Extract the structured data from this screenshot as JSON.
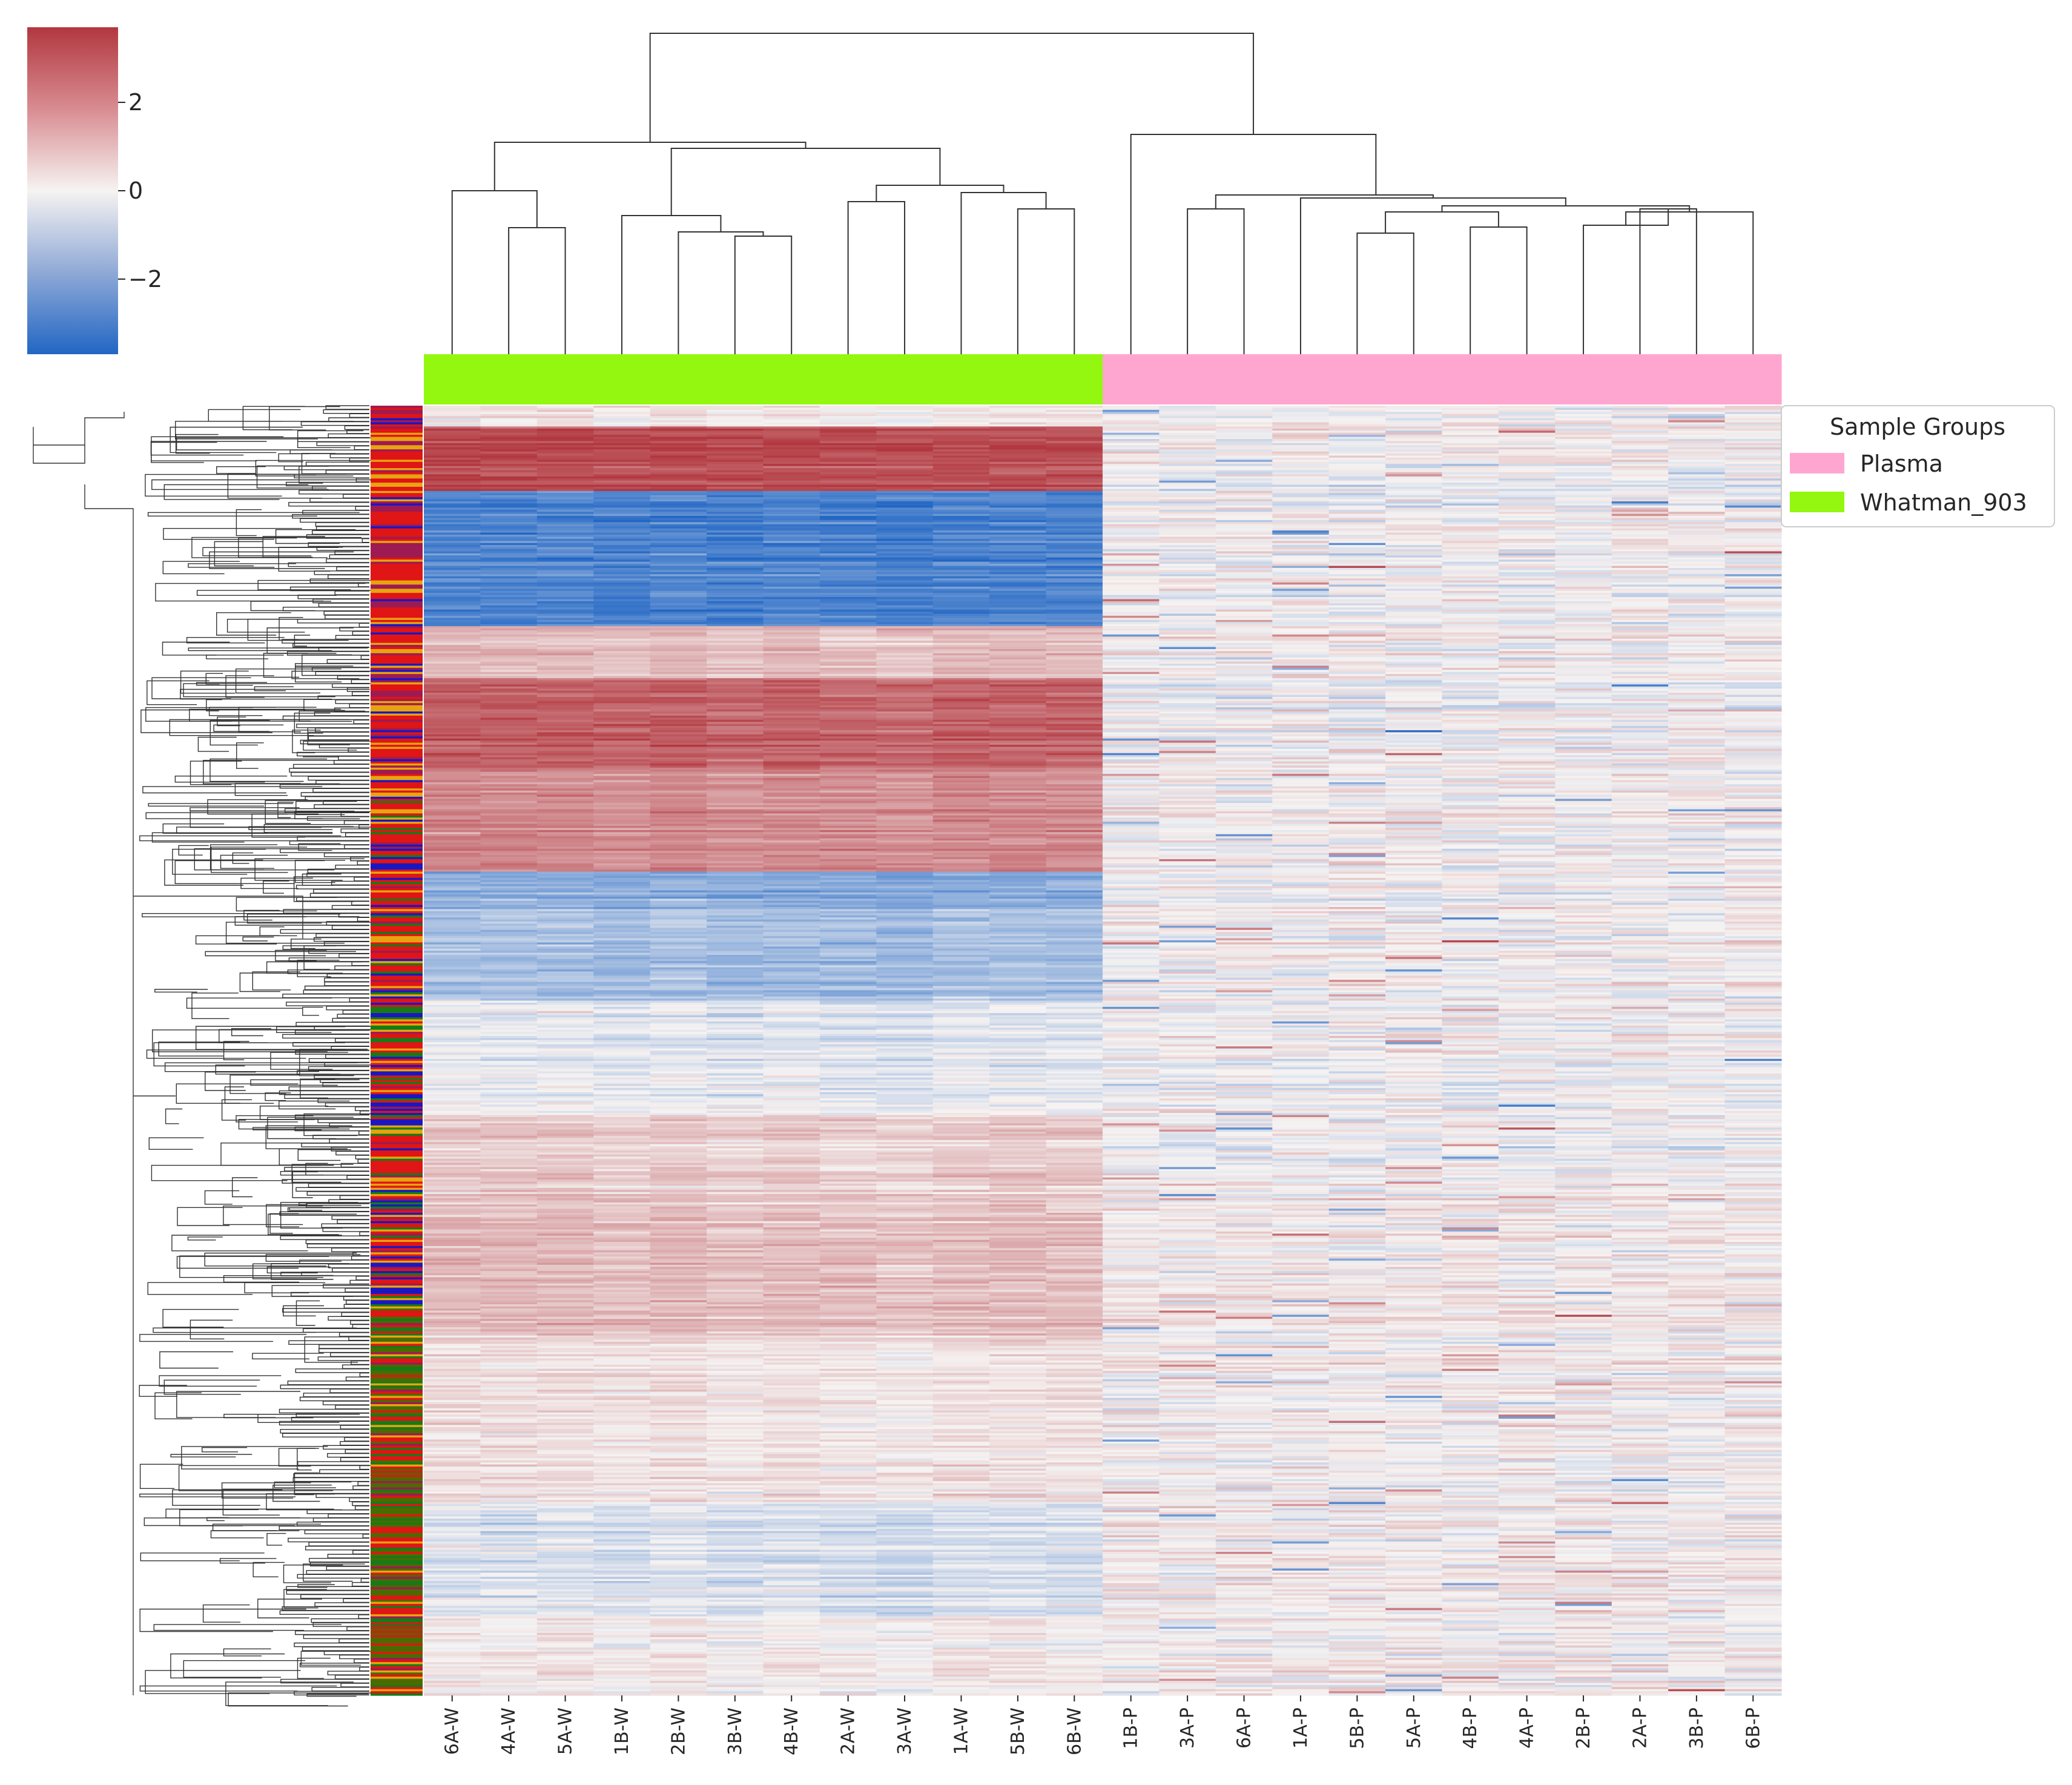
{
  "chart_data": {
    "type": "heatmap",
    "title": "",
    "colormap": "vlag (blue-white-red, diverging)",
    "colorbar": {
      "ticks": [
        2,
        0,
        -2
      ],
      "tick_labels": [
        "2",
        "0",
        "−2"
      ],
      "range": [
        -3.7,
        3.7
      ],
      "low_color": "#2166c4",
      "mid_color": "#f6f3f2",
      "high_color": "#b2373f"
    },
    "columns": [
      "6A-W",
      "4A-W",
      "5A-W",
      "1B-W",
      "2B-W",
      "3B-W",
      "4B-W",
      "2A-W",
      "3A-W",
      "1A-W",
      "5B-W",
      "6B-W",
      "1B-P",
      "3A-P",
      "6A-P",
      "1A-P",
      "5B-P",
      "5A-P",
      "4B-P",
      "4A-P",
      "2B-P",
      "2A-P",
      "3B-P",
      "6B-P"
    ],
    "column_groups": [
      "Whatman_903",
      "Whatman_903",
      "Whatman_903",
      "Whatman_903",
      "Whatman_903",
      "Whatman_903",
      "Whatman_903",
      "Whatman_903",
      "Whatman_903",
      "Whatman_903",
      "Whatman_903",
      "Whatman_903",
      "Plasma",
      "Plasma",
      "Plasma",
      "Plasma",
      "Plasma",
      "Plasma",
      "Plasma",
      "Plasma",
      "Plasma",
      "Plasma",
      "Plasma",
      "Plasma"
    ],
    "legend": {
      "title": "Sample Groups",
      "placement": "right of heatmap, top",
      "entries": [
        {
          "label": "Plasma",
          "color": "#ffa6d0"
        },
        {
          "label": "Whatman_903",
          "color": "#93f70f"
        }
      ]
    },
    "row_blocks_whatman_mean_z": [
      {
        "rows_fraction": [
          0.0,
          0.015
        ],
        "value": 0.2
      },
      {
        "rows_fraction": [
          0.015,
          0.065
        ],
        "value": 3.2
      },
      {
        "rows_fraction": [
          0.065,
          0.17
        ],
        "value": -3.0
      },
      {
        "rows_fraction": [
          0.17,
          0.21
        ],
        "value": 1.0
      },
      {
        "rows_fraction": [
          0.21,
          0.28
        ],
        "value": 2.8
      },
      {
        "rows_fraction": [
          0.28,
          0.36
        ],
        "value": 2.0
      },
      {
        "rows_fraction": [
          0.36,
          0.39
        ],
        "value": -1.8
      },
      {
        "rows_fraction": [
          0.39,
          0.46
        ],
        "value": -1.4
      },
      {
        "rows_fraction": [
          0.46,
          0.55
        ],
        "value": -0.4
      },
      {
        "rows_fraction": [
          0.55,
          0.62
        ],
        "value": 0.7
      },
      {
        "rows_fraction": [
          0.62,
          0.72
        ],
        "value": 1.1
      },
      {
        "rows_fraction": [
          0.72,
          0.85
        ],
        "value": 0.3
      },
      {
        "rows_fraction": [
          0.85,
          0.94
        ],
        "value": -0.5
      },
      {
        "rows_fraction": [
          0.94,
          1.0
        ],
        "value": 0.1
      }
    ],
    "row_color_palette": [
      "#e01515",
      "#1a17c2",
      "#e8a40f",
      "#9e1a52",
      "#177a17",
      "#4b6b00"
    ]
  }
}
